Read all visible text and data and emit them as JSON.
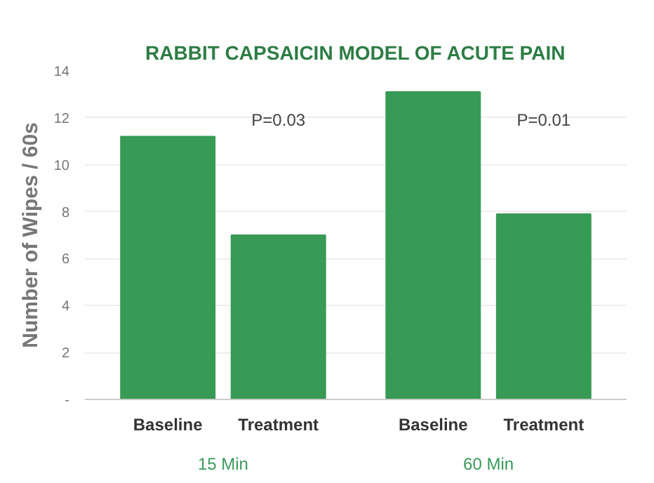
{
  "chart_data": {
    "type": "bar",
    "title": "RABBIT CAPSAICIN MODEL OF ACUTE PAIN",
    "ylabel": "Number of Wipes / 60s",
    "categories": [
      "Baseline",
      "Treatment",
      "Baseline",
      "Treatment"
    ],
    "values": [
      11.2,
      7.0,
      13.1,
      7.9
    ],
    "color": "#379a55",
    "ylim": [
      0,
      14
    ],
    "yticks": [
      {
        "value": 0,
        "label": "-"
      },
      2,
      4,
      6,
      8,
      10,
      12,
      14
    ],
    "grid": "y",
    "annotations": [
      "15 Min",
      "60 Min",
      "P=0.03",
      "P=0.01"
    ]
  }
}
